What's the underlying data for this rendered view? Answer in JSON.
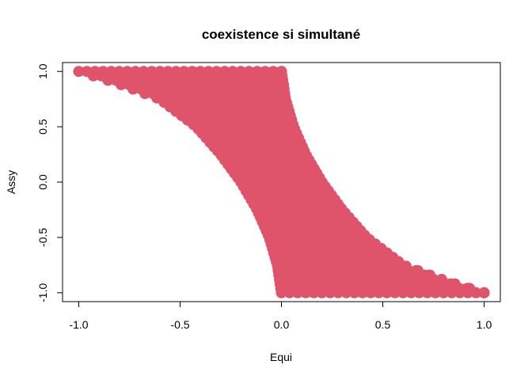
{
  "chart_data": {
    "type": "scatter",
    "title": "coexistence si simultané",
    "xlabel": "Equi",
    "ylabel": "Assy",
    "xlim": [
      -1.08,
      1.08
    ],
    "ylim": [
      -1.08,
      1.08
    ],
    "xticks": [
      -1.0,
      -0.5,
      0.0,
      0.5,
      1.0
    ],
    "yticks": [
      -1.0,
      -0.5,
      0.0,
      0.5,
      1.0
    ],
    "xtick_labels": [
      "-1.0",
      "-0.5",
      "0.0",
      "0.5",
      "1.0"
    ],
    "ytick_labels": [
      "-1.0",
      "-0.5",
      "0.0",
      "0.5",
      "1.0"
    ],
    "grid": false,
    "point_color": "#DF536B",
    "series": [
      {
        "marker": "filled-circle",
        "region": {
          "description_points_left_boundary": [
            {
              "y": 1.0,
              "x": -1.0
            },
            {
              "y": 0.9,
              "x": -0.82
            },
            {
              "y": 0.75,
              "x": -0.6
            },
            {
              "y": 0.5,
              "x": -0.42
            },
            {
              "y": 0.25,
              "x": -0.3
            },
            {
              "y": 0.0,
              "x": -0.2
            },
            {
              "y": -0.25,
              "x": -0.12
            },
            {
              "y": -0.5,
              "x": -0.06
            },
            {
              "y": -0.75,
              "x": -0.02
            },
            {
              "y": -1.0,
              "x": 0.0
            }
          ],
          "description_points_right_boundary": [
            {
              "y": 1.0,
              "x": 0.0
            },
            {
              "y": 0.75,
              "x": 0.02
            },
            {
              "y": 0.5,
              "x": 0.06
            },
            {
              "y": 0.25,
              "x": 0.12
            },
            {
              "y": 0.0,
              "x": 0.2
            },
            {
              "y": -0.25,
              "x": 0.3
            },
            {
              "y": -0.5,
              "x": 0.42
            },
            {
              "y": -0.75,
              "x": 0.6
            },
            {
              "y": -0.9,
              "x": 0.82
            },
            {
              "y": -1.0,
              "x": 1.0
            }
          ]
        }
      }
    ]
  }
}
